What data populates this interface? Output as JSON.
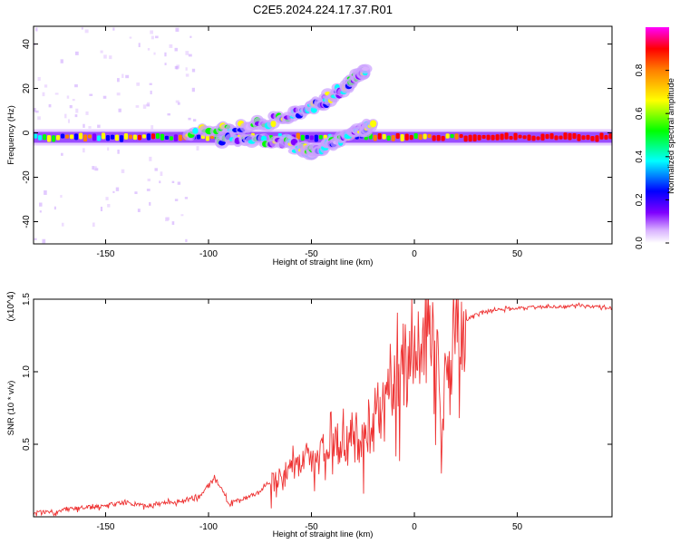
{
  "figure": {
    "title": "C2E5.2024.224.17.37.R01"
  },
  "chart_data": [
    {
      "type": "heatmap",
      "title": "C2E5.2024.224.17.37.R01",
      "xlabel": "Height of straight line (km)",
      "ylabel": "Frequency (Hz)",
      "xlim": [
        -185,
        96
      ],
      "ylim": [
        -50,
        48
      ],
      "xticks": [
        -150,
        -100,
        -50,
        0,
        50
      ],
      "yticks": [
        -40,
        -20,
        0,
        20,
        40
      ],
      "grid": false,
      "colorbar": {
        "label": "Normalized spectral amplitude",
        "range": [
          0,
          1
        ],
        "ticks": [
          "0.0",
          "0.2",
          "0.4",
          "0.6",
          "0.8"
        ],
        "colors": [
          "#ffffff",
          "#d8b0ff",
          "#8000ff",
          "#0000ff",
          "#00ffff",
          "#00ff00",
          "#ffff00",
          "#ff8000",
          "#ff0000",
          "#ff00ff"
        ]
      },
      "main_band": {
        "frequency_hz": -2,
        "from_km": -185,
        "to_km": 96
      },
      "branch": {
        "points": [
          [
            -110,
            0
          ],
          [
            -90,
            2
          ],
          [
            -75,
            4
          ],
          [
            -62,
            7
          ],
          [
            -52,
            10
          ],
          [
            -45,
            13
          ],
          [
            -38,
            18
          ],
          [
            -32,
            22
          ],
          [
            -27,
            26
          ],
          [
            -23,
            29
          ]
        ],
        "lower_points": [
          [
            -95,
            -3
          ],
          [
            -80,
            -4
          ],
          [
            -65,
            -4
          ],
          [
            -55,
            -7
          ],
          [
            -50,
            -9
          ],
          [
            -45,
            -7
          ],
          [
            -38,
            -3
          ],
          [
            -30,
            0
          ],
          [
            -25,
            2
          ],
          [
            -20,
            3
          ]
        ]
      }
    },
    {
      "type": "line",
      "xlabel": "Height of straight line (km)",
      "ylabel": "SNR (10 * v/v)",
      "y_multiplier": "(x10^4)",
      "xlim": [
        -185,
        96
      ],
      "ylim": [
        0,
        1.5
      ],
      "xticks": [
        -150,
        -100,
        -50,
        0,
        50
      ],
      "yticks": [
        "0.5",
        "1.0",
        "1.5"
      ],
      "color": "#ee3333",
      "series": [
        {
          "x": [
            -185,
            -175,
            -165,
            -150,
            -140,
            -130,
            -120,
            -110,
            -104,
            -100,
            -97,
            -94,
            -90,
            -85,
            -80,
            -75,
            -70,
            -65,
            -62,
            -58,
            -55,
            -52,
            -48,
            -44,
            -40,
            -35,
            -30,
            -25,
            -20,
            -18,
            -15,
            -12,
            -10,
            -8,
            -5,
            -2,
            0,
            3,
            5,
            8,
            10,
            12,
            13,
            15,
            18,
            20,
            22,
            25,
            28,
            30,
            35,
            40,
            50,
            60,
            70,
            80,
            90,
            96
          ],
          "y": [
            0.03,
            0.04,
            0.06,
            0.08,
            0.1,
            0.08,
            0.1,
            0.12,
            0.15,
            0.22,
            0.28,
            0.2,
            0.1,
            0.12,
            0.14,
            0.18,
            0.25,
            0.3,
            0.32,
            0.35,
            0.4,
            0.45,
            0.4,
            0.5,
            0.55,
            0.5,
            0.6,
            0.55,
            0.65,
            0.85,
            0.75,
            0.9,
            0.95,
            1.0,
            1.05,
            1.1,
            1.15,
            1.2,
            1.25,
            1.3,
            1.2,
            1.0,
            0.4,
            1.05,
            1.15,
            1.25,
            1.3,
            1.35,
            1.38,
            1.4,
            1.42,
            1.43,
            1.44,
            1.45,
            1.45,
            1.46,
            1.45,
            1.44
          ]
        }
      ]
    }
  ]
}
